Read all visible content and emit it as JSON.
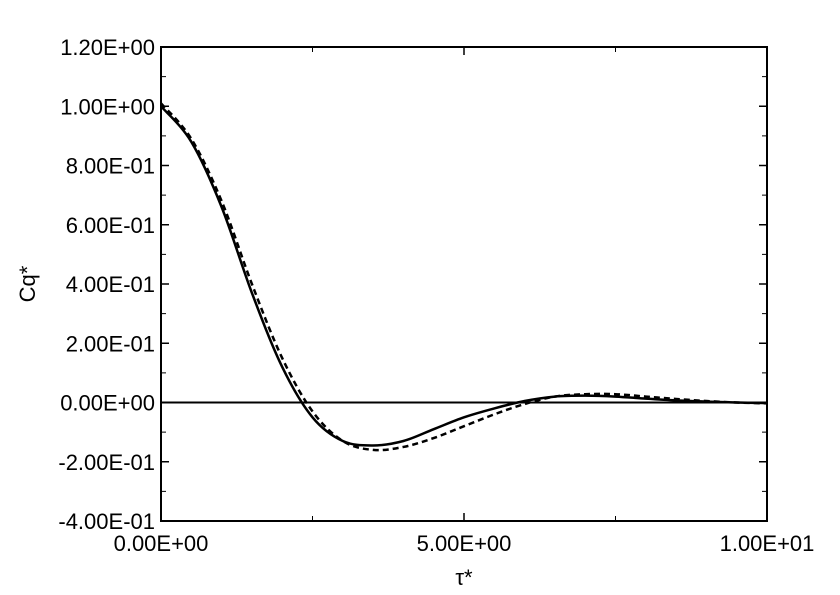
{
  "chart_data": {
    "type": "line",
    "title": "",
    "xlabel": "τ*",
    "ylabel": "Cq*",
    "xlim": [
      0,
      10
    ],
    "ylim": [
      -0.4,
      1.2
    ],
    "grid": false,
    "x_ticks": [
      {
        "value": 0,
        "label": "0.00E+00"
      },
      {
        "value": 5,
        "label": "5.00E+00"
      },
      {
        "value": 10,
        "label": "1.00E+01"
      }
    ],
    "y_ticks": [
      {
        "value": 1.2,
        "label": "1.20E+00"
      },
      {
        "value": 1.0,
        "label": "1.00E+00"
      },
      {
        "value": 0.8,
        "label": "8.00E-01"
      },
      {
        "value": 0.6,
        "label": "6.00E-01"
      },
      {
        "value": 0.4,
        "label": "4.00E-01"
      },
      {
        "value": 0.2,
        "label": "2.00E-01"
      },
      {
        "value": 0.0,
        "label": "0.00E+00"
      },
      {
        "value": -0.2,
        "label": "-2.00E-01"
      },
      {
        "value": -0.4,
        "label": "-4.00E-01"
      }
    ],
    "reference_line_y": 0,
    "series": [
      {
        "style": "solid",
        "color": "#000000",
        "x": [
          0,
          0.5,
          1.0,
          1.5,
          2.0,
          2.5,
          3.0,
          3.5,
          4.0,
          4.5,
          5.0,
          5.5,
          6.0,
          6.5,
          7.0,
          7.5,
          8.0,
          8.5,
          9.0,
          9.5,
          10.0
        ],
        "y": [
          1.0,
          0.88,
          0.66,
          0.37,
          0.12,
          -0.05,
          -0.13,
          -0.145,
          -0.13,
          -0.09,
          -0.05,
          -0.02,
          0.005,
          0.02,
          0.023,
          0.02,
          0.013,
          0.007,
          0.003,
          0.0,
          -0.002
        ]
      },
      {
        "style": "dashed",
        "color": "#000000",
        "x": [
          0,
          0.5,
          1.0,
          1.5,
          2.0,
          2.5,
          3.0,
          3.5,
          4.0,
          4.5,
          5.0,
          5.5,
          6.0,
          6.5,
          7.0,
          7.5,
          8.0,
          8.5,
          9.0,
          9.5,
          10.0
        ],
        "y": [
          1.01,
          0.89,
          0.68,
          0.4,
          0.15,
          -0.03,
          -0.13,
          -0.16,
          -0.15,
          -0.12,
          -0.08,
          -0.04,
          -0.005,
          0.02,
          0.028,
          0.028,
          0.02,
          0.012,
          0.005,
          0.0,
          -0.003
        ]
      }
    ]
  }
}
